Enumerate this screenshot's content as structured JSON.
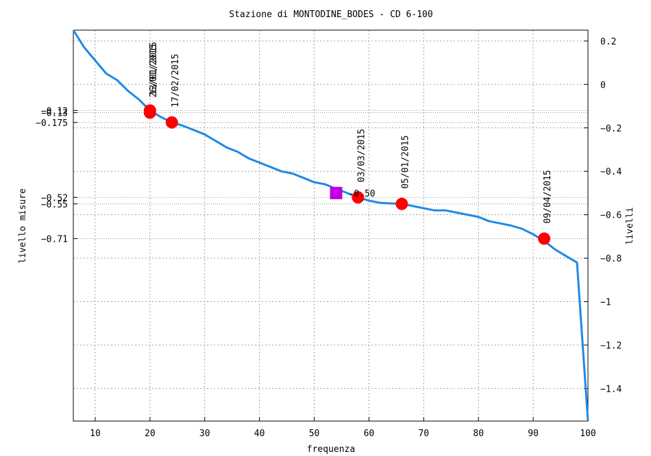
{
  "chart_data": {
    "type": "line",
    "title": "Stazione di MONTODINE_BODES - CD 6-100",
    "xlabel": "frequenza",
    "ylabel_left": "livello misure",
    "ylabel_right": "livelli",
    "xlim": [
      6,
      100
    ],
    "ylim": [
      -1.55,
      0.25
    ],
    "grid": true,
    "x_ticks": [
      "10",
      "20",
      "30",
      "40",
      "50",
      "60",
      "70",
      "80",
      "90",
      "100"
    ],
    "y_right_ticks": [
      "0.2",
      "0",
      "-0.2",
      "-0.4",
      "-0.6",
      "-0.8",
      "-1",
      "-1.2",
      "-1.4"
    ],
    "y_left_ticks": [
      "-0.12",
      "-0.13",
      "-0.175",
      "-0.52",
      "-0.55",
      "-0.71"
    ],
    "series": [
      {
        "color": "#1e88e5",
        "x": [
          6,
          8,
          10,
          12,
          14,
          16,
          18,
          20,
          22,
          24,
          26,
          28,
          30,
          32,
          34,
          36,
          38,
          40,
          42,
          44,
          46,
          48,
          50,
          52,
          54,
          56,
          58,
          60,
          62,
          64,
          66,
          68,
          70,
          72,
          74,
          76,
          78,
          80,
          82,
          84,
          86,
          88,
          90,
          92,
          94,
          96,
          98,
          100
        ],
        "y": [
          0.25,
          0.17,
          0.11,
          0.05,
          0.02,
          -0.03,
          -0.07,
          -0.12,
          -0.15,
          -0.175,
          -0.19,
          -0.21,
          -0.23,
          -0.26,
          -0.29,
          -0.31,
          -0.34,
          -0.36,
          -0.38,
          -0.4,
          -0.41,
          -0.43,
          -0.45,
          -0.46,
          -0.48,
          -0.5,
          -0.52,
          -0.535,
          -0.545,
          -0.548,
          -0.55,
          -0.56,
          -0.57,
          -0.58,
          -0.58,
          -0.59,
          -0.6,
          -0.61,
          -0.63,
          -0.64,
          -0.65,
          -0.665,
          -0.69,
          -0.72,
          -0.76,
          -0.79,
          -0.82,
          -1.55
        ]
      }
    ],
    "measurements": [
      {
        "x": 20,
        "y": -0.12,
        "label": "13/01/2015"
      },
      {
        "x": 20,
        "y": -0.13,
        "label": "26/01/2015"
      },
      {
        "x": 24,
        "y": -0.175,
        "label": "17/02/2015"
      },
      {
        "x": 58,
        "y": -0.52,
        "label": "03/03/2015"
      },
      {
        "x": 66,
        "y": -0.55,
        "label": "05/01/2015"
      },
      {
        "x": 92,
        "y": -0.71,
        "label": "09/04/2015"
      }
    ],
    "marker_square": {
      "x": 54,
      "y": -0.5,
      "label": "-0.50",
      "color": "#c000e0"
    },
    "marker_color": "#ff0000"
  }
}
